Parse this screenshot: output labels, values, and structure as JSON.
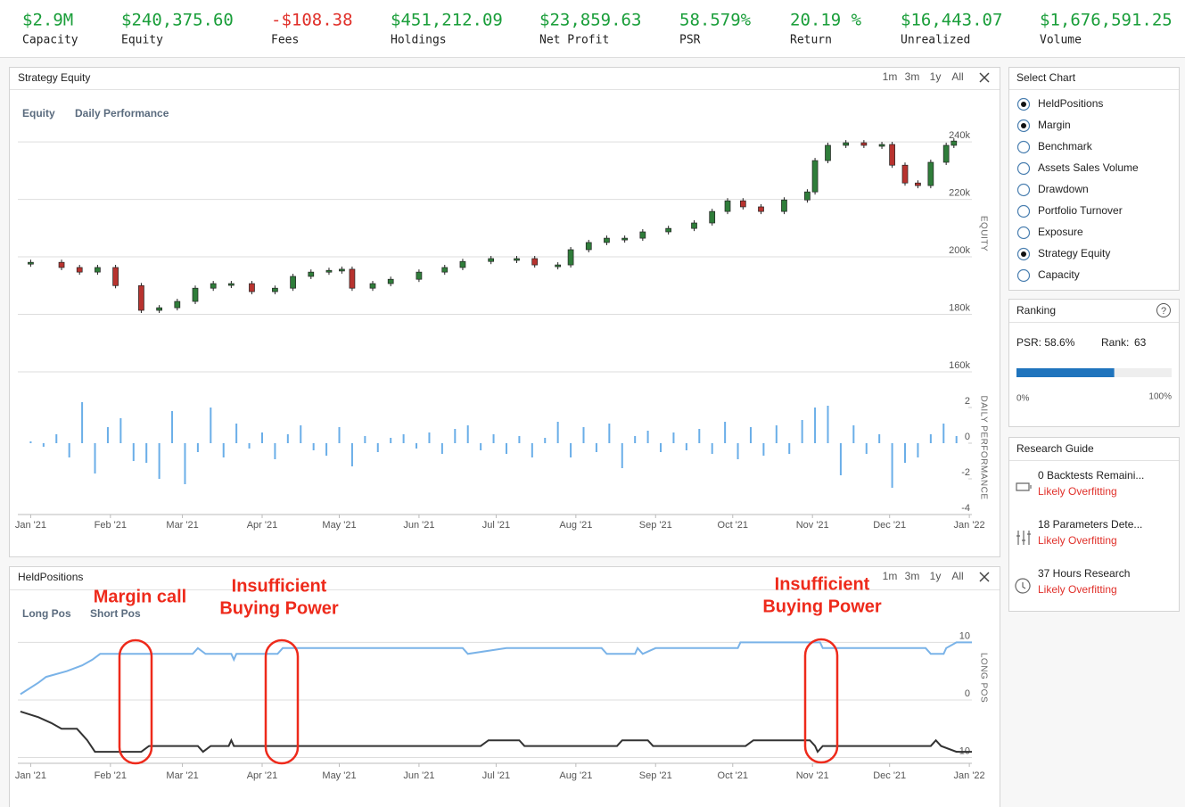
{
  "metrics": [
    {
      "value": "$2.9M",
      "label": "Capacity",
      "color": "#1a9e3a"
    },
    {
      "value": "$240,375.60",
      "label": "Equity",
      "color": "#1a9e3a"
    },
    {
      "value": "-$108.38",
      "label": "Fees",
      "color": "#e0302a"
    },
    {
      "value": "$451,212.09",
      "label": "Holdings",
      "color": "#1a9e3a"
    },
    {
      "value": "$23,859.63",
      "label": "Net Profit",
      "color": "#1a9e3a"
    },
    {
      "value": "58.579%",
      "label": "PSR",
      "color": "#1a9e3a"
    },
    {
      "value": "20.19 %",
      "label": "Return",
      "color": "#1a9e3a"
    },
    {
      "value": "$16,443.07",
      "label": "Unrealized",
      "color": "#1a9e3a"
    },
    {
      "value": "$1,676,591.25",
      "label": "Volume",
      "color": "#1a9e3a"
    }
  ],
  "panels": [
    {
      "title": "Strategy Equity",
      "ranges": [
        "1m",
        "3m",
        "1y",
        "All"
      ],
      "tabs": [
        "Equity",
        "Daily Performance"
      ]
    },
    {
      "title": "HeldPositions",
      "ranges": [
        "1m",
        "3m",
        "1y",
        "All"
      ],
      "tabs": [
        "Long Pos",
        "Short Pos"
      ]
    }
  ],
  "chart_data": [
    {
      "type": "candlestick",
      "axis_title": "EQUITY",
      "up_color": "#2f7d3a",
      "down_color": "#b8332f",
      "grid": true,
      "x": [
        0,
        12,
        19,
        26,
        33,
        43,
        50,
        57,
        64,
        71,
        78,
        86,
        95,
        102,
        109,
        116,
        121,
        125,
        133,
        140,
        151,
        161,
        168,
        179,
        189,
        196,
        205,
        210,
        217,
        224,
        231,
        238,
        248,
        258,
        265,
        271,
        277,
        284,
        293,
        302,
        305,
        310,
        317,
        324,
        331,
        335,
        340,
        345,
        350,
        356,
        359
      ],
      "values": [
        198100,
        196300,
        194700,
        196300,
        190000,
        181400,
        182300,
        184500,
        189100,
        190700,
        190700,
        187900,
        189100,
        193200,
        194700,
        195300,
        195700,
        189100,
        190700,
        192200,
        194700,
        196300,
        198400,
        199400,
        199400,
        197200,
        197200,
        202500,
        205000,
        206500,
        206500,
        208700,
        209900,
        211800,
        215800,
        219500,
        217400,
        215800,
        219800,
        222600,
        233500,
        238800,
        239700,
        238800,
        239100,
        231900,
        225700,
        224800,
        232900,
        238800,
        240300
      ],
      "xlim": [
        -5,
        366
      ],
      "ylim": [
        160000,
        245000
      ],
      "yticks": [
        {
          "value": 160000,
          "label": "160k"
        },
        {
          "value": 180000,
          "label": "180k"
        },
        {
          "value": 200000,
          "label": "200k"
        },
        {
          "value": 220000,
          "label": "220k"
        },
        {
          "value": 240000,
          "label": "240k"
        }
      ]
    },
    {
      "type": "bar",
      "axis_title": "DAILY PERFORMANCE",
      "color": "#6aaee8",
      "grid": false,
      "x": [
        0,
        5,
        10,
        15,
        20,
        25,
        30,
        35,
        40,
        45,
        50,
        55,
        60,
        65,
        70,
        75,
        80,
        85,
        90,
        95,
        100,
        105,
        110,
        115,
        120,
        125,
        130,
        135,
        140,
        145,
        150,
        155,
        160,
        165,
        170,
        175,
        180,
        185,
        190,
        195,
        200,
        205,
        210,
        215,
        220,
        225,
        230,
        235,
        240,
        245,
        250,
        255,
        260,
        265,
        270,
        275,
        280,
        285,
        290,
        295,
        300,
        305,
        310,
        315,
        320,
        325,
        330,
        335,
        340,
        345,
        350,
        355,
        360
      ],
      "values": [
        0.1,
        -0.2,
        0.5,
        -0.8,
        2.3,
        -1.7,
        0.9,
        1.4,
        -1.0,
        -1.1,
        -2.0,
        1.8,
        -2.3,
        -0.5,
        2.0,
        -0.8,
        1.1,
        -0.3,
        0.6,
        -0.9,
        0.5,
        1.0,
        -0.4,
        -0.7,
        0.9,
        -1.3,
        0.4,
        -0.5,
        0.3,
        0.5,
        -0.3,
        0.6,
        -0.6,
        0.8,
        1.0,
        -0.4,
        0.5,
        -0.6,
        0.4,
        -0.8,
        0.3,
        1.2,
        -0.8,
        0.9,
        -0.5,
        1.1,
        -1.4,
        0.4,
        0.7,
        -0.5,
        0.6,
        -0.4,
        0.8,
        -0.6,
        1.2,
        -0.9,
        0.9,
        -0.7,
        1.0,
        -0.6,
        1.3,
        2.0,
        2.1,
        -1.8,
        1.0,
        -0.6,
        0.5,
        -2.5,
        -1.1,
        -0.8,
        0.5,
        1.1,
        0.4
      ],
      "xlim": [
        -5,
        366
      ],
      "ylim": [
        -4,
        2.5
      ],
      "yticks": [
        -4,
        -2,
        0,
        2
      ],
      "xticks": [
        {
          "value": 0,
          "label": "Jan '21"
        },
        {
          "value": 31,
          "label": "Feb '21"
        },
        {
          "value": 59,
          "label": "Mar '21"
        },
        {
          "value": 90,
          "label": "Apr '21"
        },
        {
          "value": 120,
          "label": "May '21"
        },
        {
          "value": 151,
          "label": "Jun '21"
        },
        {
          "value": 181,
          "label": "Jul '21"
        },
        {
          "value": 212,
          "label": "Aug '21"
        },
        {
          "value": 243,
          "label": "Sep '21"
        },
        {
          "value": 273,
          "label": "Oct '21"
        },
        {
          "value": 304,
          "label": "Nov '21"
        },
        {
          "value": 334,
          "label": "Dec '21"
        },
        {
          "value": 365,
          "label": "Jan '22"
        }
      ]
    },
    {
      "type": "line",
      "axis_title": "LONG POS",
      "grid": true,
      "series": [
        {
          "name": "Long Pos",
          "color": "#7ab3e8",
          "x": [
            -4,
            3,
            6,
            14,
            20,
            24,
            27,
            63,
            65,
            68,
            78,
            79,
            80,
            96,
            98,
            168,
            170,
            185,
            222,
            224,
            235,
            236,
            238,
            243,
            275,
            276,
            307,
            308,
            348,
            350,
            355,
            356,
            360,
            366
          ],
          "values": [
            1,
            3,
            4,
            5,
            6,
            7,
            8,
            8,
            9,
            8,
            8,
            7,
            8,
            8,
            9,
            9,
            8,
            9,
            9,
            8,
            8,
            9,
            8,
            9,
            9,
            10,
            10,
            9,
            9,
            8,
            8,
            9,
            10,
            10
          ]
        },
        {
          "name": "Short Pos",
          "color": "#333333",
          "x": [
            -4,
            3,
            8,
            12,
            18,
            20,
            22,
            25,
            43,
            46,
            65,
            67,
            70,
            77,
            78,
            79,
            175,
            178,
            190,
            192,
            228,
            230,
            240,
            242,
            278,
            281,
            303,
            305,
            306,
            308,
            350,
            352,
            354,
            360,
            366
          ],
          "values": [
            -2,
            -3,
            -4,
            -5,
            -5,
            -6,
            -7,
            -9,
            -9,
            -8,
            -8,
            -9,
            -8,
            -8,
            -7,
            -8,
            -8,
            -7,
            -7,
            -8,
            -8,
            -7,
            -7,
            -8,
            -8,
            -7,
            -7,
            -8,
            -9,
            -8,
            -8,
            -7,
            -8,
            -9,
            -9
          ]
        }
      ],
      "xlim": [
        -5,
        366
      ],
      "ylim": [
        -11,
        13
      ],
      "yticks": [
        -10,
        0,
        10
      ],
      "xticks": [
        {
          "value": 0,
          "label": "Jan '21"
        },
        {
          "value": 31,
          "label": "Feb '21"
        },
        {
          "value": 59,
          "label": "Mar '21"
        },
        {
          "value": 90,
          "label": "Apr '21"
        },
        {
          "value": 120,
          "label": "May '21"
        },
        {
          "value": 151,
          "label": "Jun '21"
        },
        {
          "value": 181,
          "label": "Jul '21"
        },
        {
          "value": 212,
          "label": "Aug '21"
        },
        {
          "value": 243,
          "label": "Sep '21"
        },
        {
          "value": 273,
          "label": "Oct '21"
        },
        {
          "value": 304,
          "label": "Nov '21"
        },
        {
          "value": 334,
          "label": "Dec '21"
        },
        {
          "value": 365,
          "label": "Jan '22"
        }
      ],
      "annotations": [
        {
          "lines": [
            "Margin call"
          ]
        },
        {
          "lines": [
            "Insufficient",
            "Buying Power"
          ]
        },
        {
          "lines": [
            "Insufficient",
            "Buying Power"
          ]
        }
      ]
    }
  ],
  "select_chart": {
    "title": "Select Chart",
    "options": [
      {
        "label": "HeldPositions",
        "selected": true
      },
      {
        "label": "Margin",
        "selected": true
      },
      {
        "label": "Benchmark",
        "selected": false
      },
      {
        "label": "Assets Sales Volume",
        "selected": false
      },
      {
        "label": "Drawdown",
        "selected": false
      },
      {
        "label": "Portfolio Turnover",
        "selected": false
      },
      {
        "label": "Exposure",
        "selected": false
      },
      {
        "label": "Strategy Equity",
        "selected": true
      },
      {
        "label": "Capacity",
        "selected": false
      }
    ]
  },
  "ranking": {
    "title": "Ranking",
    "psr": "PSR: 58.6%",
    "rank_label": "Rank:",
    "rank": 63,
    "scale": [
      "0%",
      "100%"
    ]
  },
  "research_guide": {
    "title": "Research Guide",
    "items": [
      {
        "text": "0 Backtests Remaini...",
        "status": "Likely Overfitting"
      },
      {
        "text": "18 Parameters Dete...",
        "status": "Likely Overfitting"
      },
      {
        "text": "37 Hours Research",
        "status": "Likely Overfitting"
      }
    ]
  }
}
